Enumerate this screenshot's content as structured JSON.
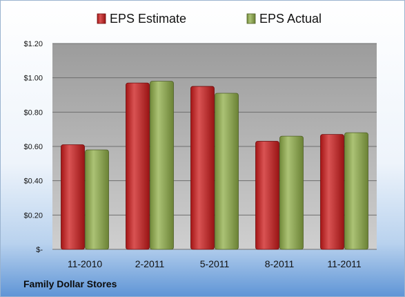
{
  "company_label": "Family Dollar Stores",
  "chart_data": {
    "type": "bar",
    "categories": [
      "11-2010",
      "2-2011",
      "5-2011",
      "8-2011",
      "11-2011"
    ],
    "series": [
      {
        "name": "EPS Estimate",
        "values": [
          0.61,
          0.97,
          0.95,
          0.63,
          0.67
        ],
        "color": "#cc1a1a"
      },
      {
        "name": "EPS Actual",
        "values": [
          0.58,
          0.98,
          0.91,
          0.66,
          0.68
        ],
        "color": "#8fad47"
      }
    ],
    "ylim": [
      0,
      1.2
    ],
    "yticks": [
      {
        "value": 0,
        "label": "$-"
      },
      {
        "value": 0.2,
        "label": "$0.20"
      },
      {
        "value": 0.4,
        "label": "$0.40"
      },
      {
        "value": 0.6,
        "label": "$0.60"
      },
      {
        "value": 0.8,
        "label": "$0.80"
      },
      {
        "value": 1.0,
        "label": "$1.00"
      },
      {
        "value": 1.2,
        "label": "$1.20"
      }
    ],
    "grid": true,
    "legend_position": "top-center",
    "plot_background": "#9a9a9a",
    "title": "",
    "xlabel": "",
    "ylabel": ""
  }
}
